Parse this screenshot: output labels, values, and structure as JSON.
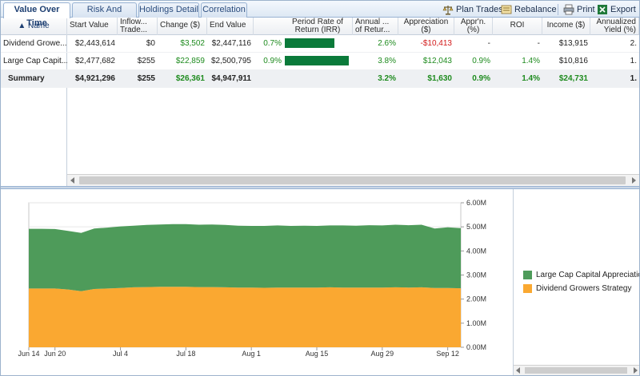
{
  "tabs": [
    {
      "label": "Value Over Time",
      "active": true
    },
    {
      "label": "Risk And Reward",
      "active": false
    },
    {
      "label": "Holdings Detail",
      "active": false
    },
    {
      "label": "Correlation",
      "active": false
    }
  ],
  "toolbar": {
    "plan_trades": "Plan Trades",
    "rebalance": "Rebalance",
    "print": "Print",
    "export": "Export"
  },
  "grid": {
    "name_header": "▲ Name",
    "columns": [
      {
        "key": "start",
        "label": "Start Value"
      },
      {
        "key": "inflow",
        "label": "Inflow... Trade..."
      },
      {
        "key": "change",
        "label": "Change ($)"
      },
      {
        "key": "end",
        "label": "End Value"
      },
      {
        "key": "irr",
        "label": "Period Rate of Return (IRR)"
      },
      {
        "key": "annual",
        "label": "Annual ... of Retur..."
      },
      {
        "key": "appr",
        "label": "Appreciation ($)"
      },
      {
        "key": "apprpct",
        "label": "Appr'n. (%)"
      },
      {
        "key": "roi",
        "label": "ROI"
      },
      {
        "key": "income",
        "label": "Income ($)"
      },
      {
        "key": "yield",
        "label": "Annualized Yield (%)"
      }
    ],
    "rows": [
      {
        "name": "Dividend Growe...",
        "start": "$2,443,614",
        "inflow": "$0",
        "change": "$3,502",
        "end": "$2,447,116",
        "irr": "0.7%",
        "irr_value": 0.7,
        "annual": "2.6%",
        "appr": "-$10,413",
        "apprpct": "-",
        "roi": "-",
        "income": "$13,915",
        "yield": "2.",
        "summary": false
      },
      {
        "name": "Large Cap Capit...",
        "start": "$2,477,682",
        "inflow": "$255",
        "change": "$22,859",
        "end": "$2,500,795",
        "irr": "0.9%",
        "irr_value": 0.9,
        "annual": "3.8%",
        "appr": "$12,043",
        "apprpct": "0.9%",
        "roi": "1.4%",
        "income": "$10,816",
        "yield": "1.",
        "summary": false
      },
      {
        "name": "Summary",
        "start": "$4,921,296",
        "inflow": "$255",
        "change": "$26,361",
        "end": "$4,947,911",
        "irr": "",
        "irr_value": null,
        "annual": "3.2%",
        "appr": "$1,630",
        "apprpct": "0.9%",
        "roi": "1.4%",
        "income": "$24,731",
        "yield": "1.",
        "summary": true
      }
    ]
  },
  "colors": {
    "positive": "#1e8b1e",
    "negative": "#d21a1a",
    "irr_bar": "#0a7a3a"
  },
  "chart_data": {
    "type": "area",
    "stacked": true,
    "x": [
      "Jun 14",
      "Jun 17",
      "Jun 20",
      "Jun 23",
      "Jun 26",
      "Jun 29",
      "Jul 2",
      "Jul 4",
      "Jul 7",
      "Jul 10",
      "Jul 13",
      "Jul 16",
      "Jul 18",
      "Jul 21",
      "Jul 24",
      "Jul 27",
      "Jul 30",
      "Aug 1",
      "Aug 4",
      "Aug 7",
      "Aug 10",
      "Aug 13",
      "Aug 15",
      "Aug 18",
      "Aug 21",
      "Aug 24",
      "Aug 27",
      "Aug 29",
      "Sep 1",
      "Sep 4",
      "Sep 7",
      "Sep 10",
      "Sep 12",
      "Sep 14"
    ],
    "x_ticks": [
      "Jun 14",
      "Jun 20",
      "Jul 4",
      "Jul 18",
      "Aug 1",
      "Aug 15",
      "Aug 29",
      "Sep 12"
    ],
    "y_ticks": [
      "0.00M",
      "1.00M",
      "2.00M",
      "3.00M",
      "4.00M",
      "5.00M",
      "6.00M"
    ],
    "ylim": [
      0,
      6000000
    ],
    "grid": true,
    "legend_position": "right",
    "series": [
      {
        "name": "Dividend Growers Strategy",
        "color": "#faa831",
        "values": [
          2440000,
          2440000,
          2440000,
          2400000,
          2330000,
          2420000,
          2440000,
          2460000,
          2490000,
          2500000,
          2510000,
          2510000,
          2510000,
          2500000,
          2500000,
          2490000,
          2480000,
          2480000,
          2470000,
          2480000,
          2480000,
          2480000,
          2480000,
          2490000,
          2480000,
          2480000,
          2480000,
          2480000,
          2490000,
          2480000,
          2490000,
          2460000,
          2460000,
          2450000
        ]
      },
      {
        "name": "Large Cap Capital Appreciation",
        "color": "#4e9b5a",
        "values": [
          2480000,
          2480000,
          2470000,
          2430000,
          2420000,
          2510000,
          2530000,
          2560000,
          2560000,
          2580000,
          2590000,
          2600000,
          2600000,
          2590000,
          2600000,
          2590000,
          2570000,
          2560000,
          2570000,
          2580000,
          2560000,
          2570000,
          2560000,
          2570000,
          2580000,
          2570000,
          2590000,
          2580000,
          2600000,
          2590000,
          2600000,
          2470000,
          2520000,
          2500000
        ]
      }
    ],
    "legend": [
      {
        "label": "Large Cap Capital Appreciation",
        "color": "#4e9b5a"
      },
      {
        "label": "Dividend Growers Strategy",
        "color": "#faa831"
      }
    ]
  }
}
